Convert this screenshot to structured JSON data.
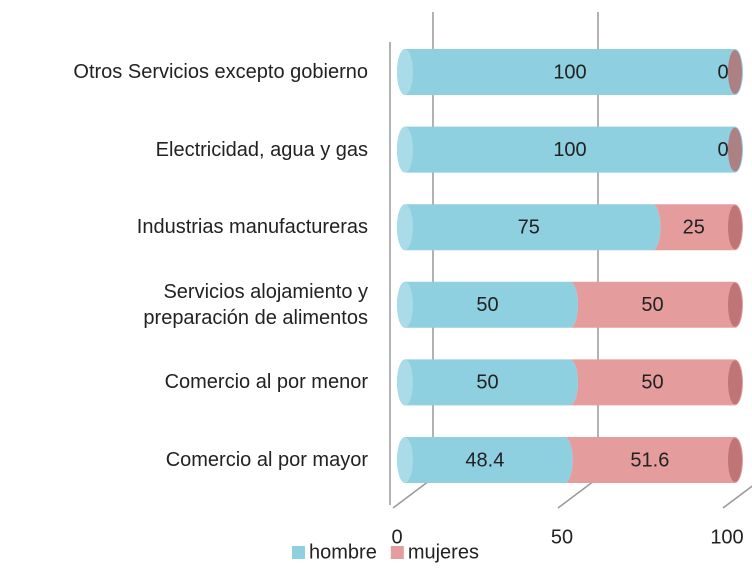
{
  "chart_data": {
    "type": "bar",
    "stacked": true,
    "orientation": "horizontal",
    "categories": [
      "Otros Servicios excepto gobierno",
      "Electricidad, agua y gas",
      "Industrias manufactureras",
      "Servicios alojamiento y\npreparación de alimentos",
      "Comercio al por menor",
      "Comercio al por mayor"
    ],
    "series": [
      {
        "name": "hombre",
        "color": "#8ecfe0",
        "values": [
          100,
          100,
          75,
          50,
          50,
          48.4
        ]
      },
      {
        "name": "mujeres",
        "color": "#e59c9c",
        "values": [
          0,
          0,
          25,
          50,
          50,
          51.6
        ]
      }
    ],
    "xlim": [
      0,
      100
    ],
    "xticks": [
      0,
      50,
      100
    ],
    "grid": true,
    "legend": "bottom"
  }
}
